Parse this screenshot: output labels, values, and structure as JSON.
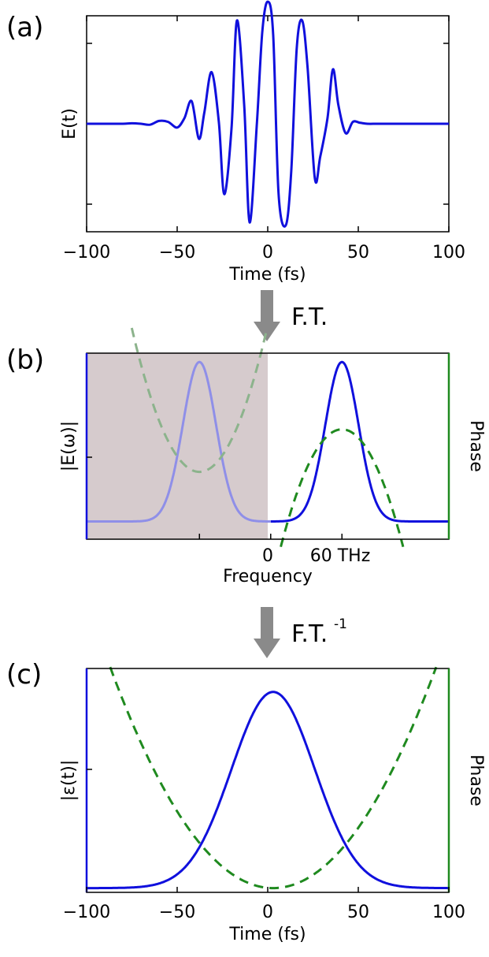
{
  "colors": {
    "magnitude": "#1010dd",
    "phase": "#1f8a1f",
    "shade": "#d6cbcd",
    "arrow": "#8a8a8a",
    "axis": "#000000"
  },
  "transforms": {
    "forward": "F.T.",
    "inverse_base": "F.T.",
    "inverse_exp": "-1"
  },
  "chart_data": [
    {
      "panel": "(a)",
      "type": "line",
      "ylabel": "E(t)",
      "xlabel": "Time (fs)",
      "xlim": [
        -100,
        100
      ],
      "xticks": [
        -100,
        -50,
        0,
        50,
        100
      ],
      "xtick_labels": [
        "−100",
        "−50",
        "0",
        "50",
        "100"
      ],
      "ylim": [
        -1.15,
        1.15
      ],
      "grid": false,
      "series": [
        {
          "color": "#1010dd",
          "x": [
            -100,
            -90,
            -80,
            -75,
            -70,
            -65,
            -60,
            -55,
            -50,
            -46,
            -42,
            -38,
            -35,
            -31,
            -27,
            -24,
            -20,
            -17,
            -13,
            -10,
            -6,
            -3,
            0,
            3,
            6,
            10,
            13,
            16,
            19,
            22,
            26,
            29,
            33,
            36,
            39,
            43,
            47,
            51,
            55,
            60,
            65,
            70,
            80,
            90,
            100
          ],
          "y": [
            0,
            0,
            0,
            0.005,
            0,
            -0.01,
            0.03,
            0.02,
            -0.04,
            0.06,
            0.24,
            -0.16,
            0.12,
            0.55,
            0.02,
            -0.75,
            -0.05,
            1.1,
            0.2,
            -1.05,
            0,
            0.98,
            1.3,
            0.95,
            -0.75,
            -1.08,
            -0.5,
            0.8,
            1.1,
            0.6,
            -0.58,
            -0.35,
            0.06,
            0.58,
            0.2,
            -0.1,
            0.02,
            0.01,
            0,
            0,
            0,
            0,
            0,
            0,
            0
          ]
        }
      ]
    },
    {
      "panel": "(b)",
      "type": "line",
      "ylabel": "|E(ω)|",
      "ylabel_right": "Phase",
      "xlabel": "Frequency",
      "xticks": [
        0,
        60
      ],
      "xtick_labels": [
        "0",
        "60 THz"
      ],
      "xlim": [
        -155,
        150
      ],
      "ylim": [
        0,
        1.05
      ],
      "shaded_region": [
        -155,
        0
      ],
      "grid": false,
      "series": [
        {
          "kind": "magnitude",
          "color": "#1010dd",
          "center": 60,
          "width": 14,
          "peak": 1.0,
          "range": [
            0,
            150
          ]
        },
        {
          "kind": "magnitude-negative",
          "color": "#8f8fe8",
          "center": -60,
          "width": 14,
          "peak": 1.0,
          "range": [
            -155,
            0
          ]
        },
        {
          "kind": "phase",
          "color": "#1f8a1f",
          "dashed": true,
          "center": 60,
          "peak": 0.62,
          "curvature": -0.00025,
          "range": [
            0,
            150
          ]
        },
        {
          "kind": "phase-negative",
          "color": "#8cb38c",
          "dashed": true,
          "center": -60,
          "peak": 0.38,
          "curvature": 0.00025,
          "range": [
            -155,
            0
          ]
        }
      ]
    },
    {
      "panel": "(c)",
      "type": "line",
      "ylabel": "|ε(t)|",
      "ylabel_right": "Phase",
      "xlabel": "Time (fs)",
      "xlim": [
        -100,
        100
      ],
      "xticks": [
        -100,
        -50,
        0,
        50,
        100
      ],
      "xtick_labels": [
        "−100",
        "−50",
        "0",
        "50",
        "100"
      ],
      "ylim": [
        0,
        1.05
      ],
      "grid": false,
      "series": [
        {
          "kind": "envelope",
          "color": "#1010dd",
          "center": 3,
          "width": 23,
          "peak": 0.94,
          "baseline": 0.02
        },
        {
          "kind": "phase",
          "color": "#1f8a1f",
          "dashed": true,
          "center": 3,
          "min": 0.02,
          "curvature": 0.000128
        }
      ]
    }
  ]
}
